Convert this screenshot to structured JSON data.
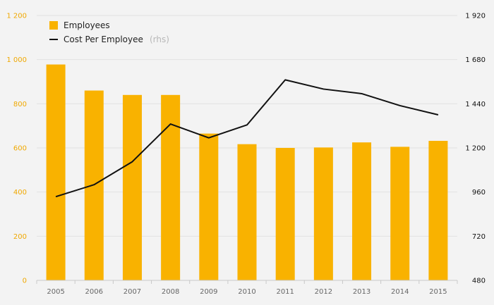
{
  "chart_data": {
    "type": "bar",
    "categories": [
      "2005",
      "2006",
      "2007",
      "2008",
      "2009",
      "2010",
      "2011",
      "2012",
      "2013",
      "2014",
      "2015"
    ],
    "series": [
      {
        "name": "Employees",
        "type": "bar",
        "axis": "left",
        "color": "#f9b200",
        "values": [
          978,
          860,
          840,
          840,
          665,
          617,
          600,
          602,
          625,
          605,
          632
        ]
      },
      {
        "name": "Cost Per Employee",
        "type": "line",
        "axis": "right",
        "color": "#111111",
        "values": [
          935,
          1000,
          1125,
          1330,
          1255,
          1325,
          1570,
          1520,
          1495,
          1430,
          1380
        ]
      }
    ],
    "legend": {
      "items": [
        {
          "label": "Employees"
        },
        {
          "label": "Cost Per Employee",
          "suffix": "(rhs)"
        }
      ],
      "position": "top-left"
    },
    "y_left": {
      "range": [
        0,
        1200
      ],
      "ticks": [
        {
          "value": 0,
          "label": "0"
        },
        {
          "value": 200,
          "label": "200"
        },
        {
          "value": 400,
          "label": "400"
        },
        {
          "value": 600,
          "label": "600"
        },
        {
          "value": 800,
          "label": "800"
        },
        {
          "value": 1000,
          "label": "1 000"
        },
        {
          "value": 1200,
          "label": "1 200"
        }
      ],
      "color": "#f0a800"
    },
    "y_right": {
      "range": [
        480,
        1920
      ],
      "ticks": [
        {
          "value": 480,
          "label": "480"
        },
        {
          "value": 720,
          "label": "720"
        },
        {
          "value": 960,
          "label": "960"
        },
        {
          "value": 1200,
          "label": "1 200"
        },
        {
          "value": 1440,
          "label": "1 440"
        },
        {
          "value": 1680,
          "label": "1 680"
        },
        {
          "value": 1920,
          "label": "1 920"
        }
      ],
      "color": "#111111"
    },
    "grid": true
  }
}
